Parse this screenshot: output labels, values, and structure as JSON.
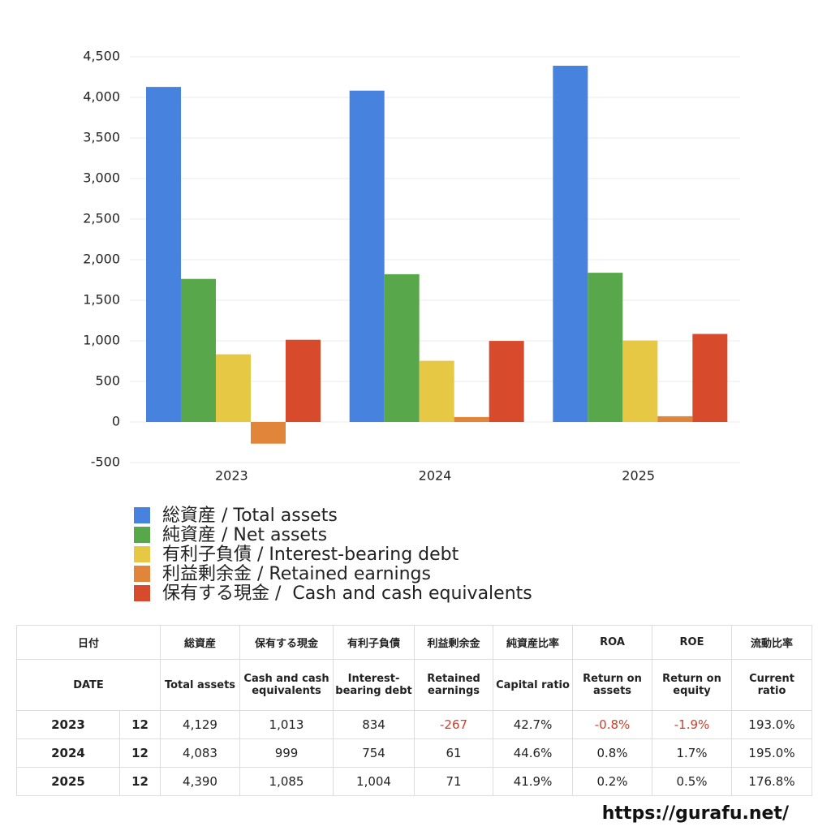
{
  "chart_data": {
    "type": "bar",
    "categories": [
      "2023",
      "2024",
      "2025"
    ],
    "series": [
      {
        "name": "総資産 / Total assets",
        "color": "#4783de",
        "values": [
          4129,
          4083,
          4390
        ]
      },
      {
        "name": "純資産 / Net assets",
        "color": "#58a84b",
        "values": [
          1763,
          1821,
          1839
        ]
      },
      {
        "name": "有利子負債 / Interest-bearing debt",
        "color": "#e6c845",
        "values": [
          834,
          754,
          1004
        ]
      },
      {
        "name": "利益剰余金 / Retained earnings",
        "color": "#e0853a",
        "values": [
          -267,
          61,
          71
        ]
      },
      {
        "name": "保有する現金 /  Cash and cash equivalents",
        "color": "#d84a2c",
        "values": [
          1013,
          999,
          1085
        ]
      }
    ],
    "ylim": [
      -500,
      4500
    ],
    "yticks": [
      -500,
      0,
      500,
      {
        "value": 1000,
        "label": "1,000"
      },
      {
        "value": 1500,
        "label": "1,500"
      },
      {
        "value": 2000,
        "label": "2,000"
      },
      {
        "value": 2500,
        "label": "2,500"
      },
      {
        "value": 3000,
        "label": "3,000"
      },
      {
        "value": 3500,
        "label": "3,500"
      },
      {
        "value": 4000,
        "label": "4,000"
      },
      {
        "value": 4500,
        "label": "4,500"
      }
    ],
    "grid": true
  },
  "table": {
    "header_jp": [
      "日付",
      "総資産",
      "保有する現金",
      "有利子負債",
      "利益剰余金",
      "純資産比率",
      "ROA",
      "ROE",
      "流動比率"
    ],
    "header_en": [
      "DATE",
      "Total assets",
      "Cash and cash equivalents",
      "Interest-bearing debt",
      "Retained earnings",
      "Capital ratio",
      "Return on assets",
      "Return on equity",
      "Current ratio"
    ],
    "rows": [
      [
        "2023",
        "12",
        "4,129",
        "1,013",
        "834",
        "-267",
        "42.7%",
        "-0.8%",
        "-1.9%",
        "193.0%"
      ],
      [
        "2024",
        "12",
        "4,083",
        "999",
        "754",
        "61",
        "44.6%",
        "0.8%",
        "1.7%",
        "195.0%"
      ],
      [
        "2025",
        "12",
        "4,390",
        "1,085",
        "1,004",
        "71",
        "41.9%",
        "0.2%",
        "0.5%",
        "176.8%"
      ]
    ]
  },
  "footer": {
    "url": "https://gurafu.net/"
  }
}
